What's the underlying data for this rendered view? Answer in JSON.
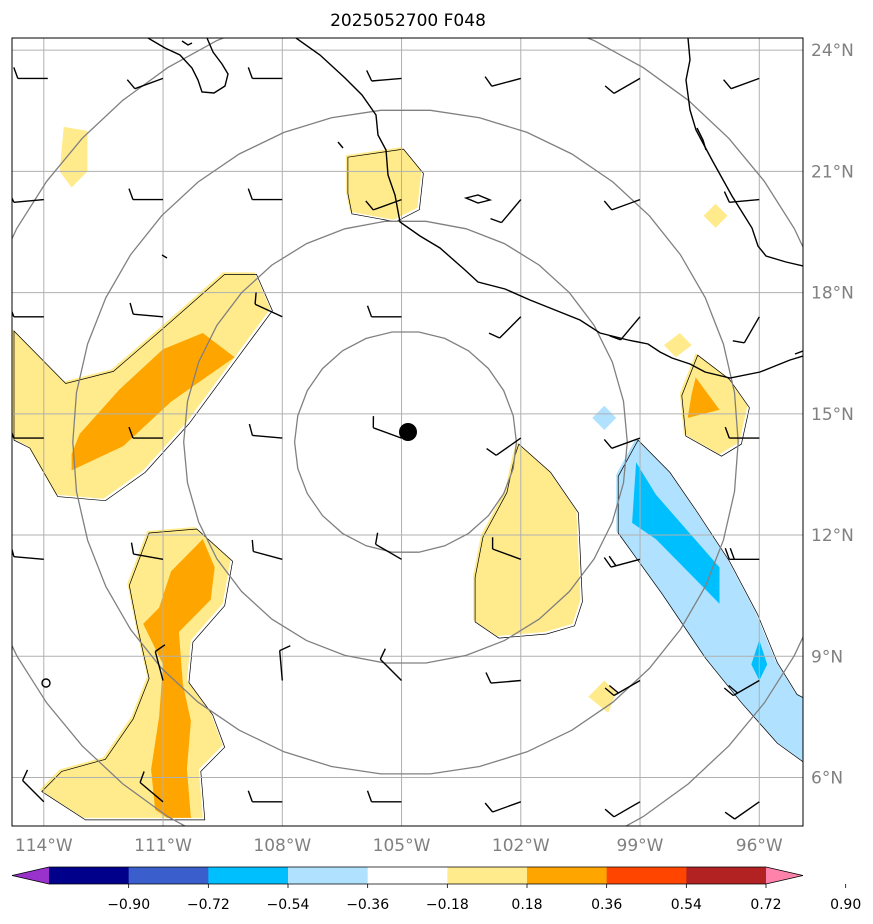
{
  "map": {
    "title": "2025052700 F048",
    "lon_ticks": [
      {
        "value": -114,
        "label": "114°W"
      },
      {
        "value": -111,
        "label": "111°W"
      },
      {
        "value": -108,
        "label": "108°W"
      },
      {
        "value": -105,
        "label": "105°W"
      },
      {
        "value": -102,
        "label": "102°W"
      },
      {
        "value": -99,
        "label": "99°W"
      },
      {
        "value": -96,
        "label": "96°W"
      }
    ],
    "lat_ticks": [
      {
        "value": 24,
        "label": "24°N"
      },
      {
        "value": 21,
        "label": "21°N"
      },
      {
        "value": 18,
        "label": "18°N"
      },
      {
        "value": 15,
        "label": "15°N"
      },
      {
        "value": 12,
        "label": "12°N"
      },
      {
        "value": 9,
        "label": "9°N"
      },
      {
        "value": 6,
        "label": "6°N"
      }
    ],
    "extent": {
      "lon_min": -114.8,
      "lon_max": -94.9,
      "lat_min": 4.8,
      "lat_max": 24.3
    },
    "storm_center": {
      "lon": -104.9,
      "lat": 14.3
    },
    "range_rings": {
      "count": 4,
      "color": "#808080"
    },
    "grid_color": "#b0b0b0",
    "colorbar": {
      "colors": [
        "#9932cc",
        "#00008b",
        "#3a5fcd",
        "#00bfff",
        "#b0e2ff",
        "#ffffff",
        "#ffeb8c",
        "#ffa500",
        "#ff4500",
        "#b22222",
        "#ff82ab"
      ],
      "tick_labels": [
        "−0.90",
        "−0.72",
        "−0.54",
        "−0.36",
        "−0.18",
        "0.18",
        "0.36",
        "0.54",
        "0.72",
        "0.90"
      ],
      "extend": "both"
    },
    "fill_regions": [
      {
        "level": "0.18-0.36",
        "color": "#ffeb8c",
        "points": [
          [
            -114.8,
            17.1
          ],
          [
            -113.5,
            15.8
          ],
          [
            -112.3,
            16.1
          ],
          [
            -111.0,
            17.2
          ],
          [
            -109.5,
            18.5
          ],
          [
            -108.7,
            18.5
          ],
          [
            -108.3,
            17.6
          ],
          [
            -109.2,
            16.4
          ],
          [
            -110.4,
            14.8
          ],
          [
            -111.5,
            13.6
          ],
          [
            -112.5,
            12.9
          ],
          [
            -113.7,
            13.0
          ],
          [
            -114.4,
            14.2
          ],
          [
            -114.8,
            14.4
          ]
        ]
      },
      {
        "level": "0.36-0.54",
        "color": "#ffa500",
        "points": [
          [
            -113.3,
            13.6
          ],
          [
            -112.0,
            14.2
          ],
          [
            -110.8,
            15.3
          ],
          [
            -109.2,
            16.4
          ],
          [
            -110.0,
            17.0
          ],
          [
            -111.0,
            16.6
          ],
          [
            -112.1,
            15.6
          ],
          [
            -113.1,
            14.5
          ],
          [
            -113.3,
            14.0
          ]
        ]
      },
      {
        "level": "0.18-0.36",
        "color": "#ffeb8c",
        "points": [
          [
            -111.4,
            12.1
          ],
          [
            -110.2,
            12.2
          ],
          [
            -109.3,
            11.4
          ],
          [
            -109.5,
            10.3
          ],
          [
            -110.3,
            9.4
          ],
          [
            -110.4,
            8.4
          ],
          [
            -109.8,
            7.6
          ],
          [
            -109.5,
            6.8
          ],
          [
            -110.1,
            6.2
          ],
          [
            -110.0,
            5.0
          ],
          [
            -113.0,
            5.0
          ],
          [
            -114.1,
            5.7
          ],
          [
            -113.6,
            6.2
          ],
          [
            -112.5,
            6.5
          ],
          [
            -111.8,
            7.5
          ],
          [
            -111.4,
            8.5
          ],
          [
            -111.7,
            9.8
          ],
          [
            -111.9,
            10.8
          ]
        ]
      },
      {
        "level": "0.36-0.54",
        "color": "#ffa500",
        "points": [
          [
            -111.1,
            10.2
          ],
          [
            -110.8,
            11.1
          ],
          [
            -110.0,
            11.9
          ],
          [
            -109.7,
            11.2
          ],
          [
            -109.8,
            10.4
          ],
          [
            -110.6,
            9.6
          ],
          [
            -110.5,
            8.3
          ],
          [
            -110.3,
            7.4
          ],
          [
            -110.4,
            6.2
          ],
          [
            -110.3,
            5.0
          ],
          [
            -110.9,
            5.0
          ],
          [
            -111.2,
            5.2
          ],
          [
            -111.3,
            6.2
          ],
          [
            -111.1,
            7.5
          ],
          [
            -111.0,
            8.8
          ],
          [
            -111.5,
            9.8
          ]
        ]
      },
      {
        "level": "0.18-0.36",
        "color": "#ffeb8c",
        "points": [
          [
            -113.5,
            22.1
          ],
          [
            -112.9,
            22.0
          ],
          [
            -112.9,
            21.0
          ],
          [
            -113.3,
            20.6
          ],
          [
            -113.6,
            21.0
          ]
        ]
      },
      {
        "level": "0.18-0.36",
        "color": "#ffeb8c",
        "points": [
          [
            -106.4,
            21.4
          ],
          [
            -105.0,
            21.6
          ],
          [
            -104.5,
            21.0
          ],
          [
            -104.6,
            20.1
          ],
          [
            -105.2,
            19.8
          ],
          [
            -106.3,
            20.0
          ],
          [
            -106.4,
            20.5
          ]
        ]
      },
      {
        "level": "0.18-0.36",
        "color": "#ffeb8c",
        "points": [
          [
            -102.1,
            14.3
          ],
          [
            -101.3,
            13.6
          ],
          [
            -100.6,
            12.6
          ],
          [
            -100.5,
            10.4
          ],
          [
            -100.7,
            9.8
          ],
          [
            -101.4,
            9.6
          ],
          [
            -102.6,
            9.5
          ],
          [
            -103.2,
            9.9
          ],
          [
            -103.2,
            11.0
          ],
          [
            -103.0,
            12.0
          ],
          [
            -102.4,
            13.1
          ],
          [
            -102.2,
            14.0
          ]
        ]
      },
      {
        "level": "0.18-0.36",
        "color": "#ffeb8c",
        "points": [
          [
            -97.6,
            16.5
          ],
          [
            -96.8,
            15.9
          ],
          [
            -96.3,
            15.2
          ],
          [
            -96.5,
            14.3
          ],
          [
            -97.0,
            14.0
          ],
          [
            -97.9,
            14.5
          ],
          [
            -98.0,
            15.5
          ]
        ]
      },
      {
        "level": "0.36-0.54",
        "color": "#ffa500",
        "points": [
          [
            -97.6,
            15.9
          ],
          [
            -97.3,
            15.5
          ],
          [
            -97.0,
            15.1
          ],
          [
            -97.8,
            14.9
          ],
          [
            -97.7,
            15.5
          ]
        ]
      },
      {
        "level": "0.18-0.36",
        "color": "#ffeb8c",
        "points": [
          [
            -98.0,
            17.0
          ],
          [
            -97.7,
            16.7
          ],
          [
            -98.1,
            16.4
          ],
          [
            -98.4,
            16.7
          ]
        ]
      },
      {
        "level": "0.18-0.36",
        "color": "#ffeb8c",
        "points": [
          [
            -97.1,
            20.2
          ],
          [
            -96.8,
            19.9
          ],
          [
            -97.1,
            19.6
          ],
          [
            -97.4,
            19.9
          ]
        ]
      },
      {
        "level": "0.18-0.36",
        "color": "#ffeb8c",
        "points": [
          [
            -99.9,
            8.4
          ],
          [
            -99.6,
            8.1
          ],
          [
            -99.8,
            7.6
          ],
          [
            -100.3,
            8.0
          ]
        ]
      },
      {
        "level": "-0.36--0.18",
        "color": "#b0e2ff",
        "points": [
          [
            -99.1,
            14.4
          ],
          [
            -98.3,
            13.6
          ],
          [
            -97.6,
            12.6
          ],
          [
            -96.8,
            11.4
          ],
          [
            -96.1,
            10.1
          ],
          [
            -95.6,
            8.9
          ],
          [
            -95.1,
            8.1
          ],
          [
            -94.9,
            8.0
          ],
          [
            -94.9,
            6.4
          ],
          [
            -95.6,
            6.9
          ],
          [
            -96.5,
            7.9
          ],
          [
            -97.4,
            9.0
          ],
          [
            -98.5,
            10.6
          ],
          [
            -99.6,
            12.1
          ],
          [
            -99.6,
            13.5
          ]
        ]
      },
      {
        "level": "-0.54--0.36",
        "color": "#00bfff",
        "points": [
          [
            -99.1,
            13.8
          ],
          [
            -98.6,
            13.0
          ],
          [
            -97.8,
            12.1
          ],
          [
            -97.0,
            11.2
          ],
          [
            -97.0,
            10.3
          ],
          [
            -97.8,
            11.1
          ],
          [
            -98.6,
            11.9
          ],
          [
            -99.2,
            12.3
          ]
        ]
      },
      {
        "level": "-0.54--0.36",
        "color": "#00bfff",
        "points": [
          [
            -96.0,
            9.4
          ],
          [
            -95.8,
            8.8
          ],
          [
            -96.0,
            8.4
          ],
          [
            -96.2,
            8.8
          ]
        ]
      },
      {
        "level": "-0.36--0.18",
        "color": "#b0e2ff",
        "points": [
          [
            -99.9,
            15.2
          ],
          [
            -99.6,
            14.9
          ],
          [
            -99.9,
            14.6
          ],
          [
            -100.2,
            14.9
          ]
        ]
      }
    ],
    "barbs": [
      {
        "lon": -113.9,
        "lat": 23.3,
        "dir": 270,
        "flags": 1
      },
      {
        "lon": -111.0,
        "lat": 23.3,
        "dir": 250,
        "flags": 1
      },
      {
        "lon": -108.0,
        "lat": 23.3,
        "dir": 270,
        "flags": 1
      },
      {
        "lon": -105.0,
        "lat": 23.3,
        "dir": 265,
        "flags": 1
      },
      {
        "lon": -102.0,
        "lat": 23.3,
        "dir": 255,
        "flags": 1
      },
      {
        "lon": -99.0,
        "lat": 23.3,
        "dir": 240,
        "flags": 1
      },
      {
        "lon": -96.0,
        "lat": 23.3,
        "dir": 250,
        "flags": 1
      },
      {
        "lon": -114.0,
        "lat": 20.3,
        "dir": 265,
        "flags": 1
      },
      {
        "lon": -111.0,
        "lat": 20.3,
        "dir": 270,
        "flags": 1
      },
      {
        "lon": -108.0,
        "lat": 20.3,
        "dir": 270,
        "flags": 1
      },
      {
        "lon": -105.0,
        "lat": 20.3,
        "dir": 250,
        "flags": 1
      },
      {
        "lon": -102.0,
        "lat": 20.3,
        "dir": 220,
        "flags": 1
      },
      {
        "lon": -99.0,
        "lat": 20.3,
        "dir": 250,
        "flags": 1
      },
      {
        "lon": -96.0,
        "lat": 20.3,
        "dir": 265,
        "flags": 1
      },
      {
        "lon": -114.0,
        "lat": 17.4,
        "dir": 270,
        "flags": 1
      },
      {
        "lon": -111.0,
        "lat": 17.4,
        "dir": 275,
        "flags": 1
      },
      {
        "lon": -108.0,
        "lat": 17.4,
        "dir": 295,
        "flags": 1
      },
      {
        "lon": -105.0,
        "lat": 17.4,
        "dir": 270,
        "flags": 1
      },
      {
        "lon": -102.0,
        "lat": 17.4,
        "dir": 225,
        "flags": 1
      },
      {
        "lon": -99.0,
        "lat": 17.4,
        "dir": 220,
        "flags": 1
      },
      {
        "lon": -96.0,
        "lat": 17.4,
        "dir": 210,
        "flags": 1
      },
      {
        "lon": -114.0,
        "lat": 14.4,
        "dir": 270,
        "flags": 1
      },
      {
        "lon": -111.0,
        "lat": 14.4,
        "dir": 270,
        "flags": 1
      },
      {
        "lon": -108.0,
        "lat": 14.4,
        "dir": 275,
        "flags": 1
      },
      {
        "lon": -105.0,
        "lat": 14.4,
        "dir": 290,
        "flags": 1
      },
      {
        "lon": -102.0,
        "lat": 14.4,
        "dir": 235,
        "flags": 1
      },
      {
        "lon": -99.0,
        "lat": 14.4,
        "dir": 250,
        "flags": 1
      },
      {
        "lon": -96.0,
        "lat": 14.4,
        "dir": 270,
        "flags": 1
      },
      {
        "lon": -114.0,
        "lat": 11.4,
        "dir": 275,
        "flags": 1
      },
      {
        "lon": -111.0,
        "lat": 11.4,
        "dir": 280,
        "flags": 1
      },
      {
        "lon": -108.0,
        "lat": 11.4,
        "dir": 285,
        "flags": 1
      },
      {
        "lon": -105.0,
        "lat": 11.4,
        "dir": 300,
        "flags": 1
      },
      {
        "lon": -102.0,
        "lat": 11.4,
        "dir": 290,
        "flags": 1
      },
      {
        "lon": -99.0,
        "lat": 11.4,
        "dir": 255,
        "flags": 2
      },
      {
        "lon": -96.0,
        "lat": 11.4,
        "dir": 270,
        "flags": 2
      },
      {
        "lon": -111.0,
        "lat": 8.4,
        "dir": 345,
        "flags": 1
      },
      {
        "lon": -108.0,
        "lat": 8.4,
        "dir": 355,
        "flags": 1
      },
      {
        "lon": -105.0,
        "lat": 8.4,
        "dir": 315,
        "flags": 1
      },
      {
        "lon": -102.0,
        "lat": 8.4,
        "dir": 265,
        "flags": 1
      },
      {
        "lon": -99.0,
        "lat": 8.4,
        "dir": 240,
        "flags": 2
      },
      {
        "lon": -96.0,
        "lat": 8.4,
        "dir": 240,
        "flags": 2
      },
      {
        "lon": -114.0,
        "lat": 5.4,
        "dir": 315,
        "flags": 1
      },
      {
        "lon": -111.0,
        "lat": 5.4,
        "dir": 310,
        "flags": 1
      },
      {
        "lon": -108.0,
        "lat": 5.4,
        "dir": 270,
        "flags": 1
      },
      {
        "lon": -105.0,
        "lat": 5.4,
        "dir": 270,
        "flags": 1
      },
      {
        "lon": -102.0,
        "lat": 5.4,
        "dir": 250,
        "flags": 1
      },
      {
        "lon": -99.0,
        "lat": 5.4,
        "dir": 240,
        "flags": 1
      },
      {
        "lon": -96.0,
        "lat": 5.4,
        "dir": 235,
        "flags": 1
      }
    ]
  }
}
